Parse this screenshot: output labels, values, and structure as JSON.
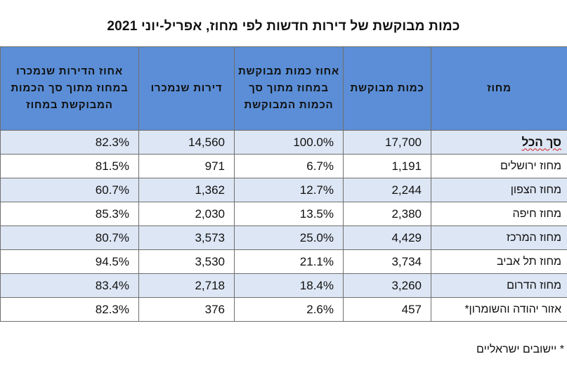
{
  "title": "כמות מבוקשת של דירות חדשות לפי מחוז, אפריל-יוני 2021",
  "table": {
    "headers": {
      "district": "מחוז",
      "requested": "כמות מבוקשת",
      "requested_pct": "אחוז כמות מבוקשת במחוז מתוך סך הכמות המבוקשת",
      "sold": "דירות שנמכרו",
      "sold_pct": "אחוז הדירות שנמכרו במחוז מתוך סך הכמות המבוקשת במחוז"
    },
    "rows": [
      {
        "district": "סך הכל",
        "requested": "17,700",
        "requested_pct": "100.0%",
        "sold": "14,560",
        "sold_pct": "82.3%"
      },
      {
        "district": "מחוז ירושלים",
        "requested": "1,191",
        "requested_pct": "6.7%",
        "sold": "971",
        "sold_pct": "81.5%"
      },
      {
        "district": "מחוז הצפון",
        "requested": "2,244",
        "requested_pct": "12.7%",
        "sold": "1,362",
        "sold_pct": "60.7%"
      },
      {
        "district": "מחוז חיפה",
        "requested": "2,380",
        "requested_pct": "13.5%",
        "sold": "2,030",
        "sold_pct": "85.3%"
      },
      {
        "district": "מחוז המרכז",
        "requested": "4,429",
        "requested_pct": "25.0%",
        "sold": "3,573",
        "sold_pct": "80.7%"
      },
      {
        "district": "מחוז תל אביב",
        "requested": "3,734",
        "requested_pct": "21.1%",
        "sold": "3,530",
        "sold_pct": "94.5%"
      },
      {
        "district": "מחוז הדרום",
        "requested": "3,260",
        "requested_pct": "18.4%",
        "sold": "2,718",
        "sold_pct": "83.4%"
      },
      {
        "district": "אזור יהודה והשומרון*",
        "requested": "457",
        "requested_pct": "2.6%",
        "sold": "376",
        "sold_pct": "82.3%"
      }
    ]
  },
  "footnote": "* יישובים ישראליים",
  "colors": {
    "header_bg": "#5b8ed6",
    "shaded_row_bg": "#dde6f4",
    "border": "#6f6f6f"
  }
}
